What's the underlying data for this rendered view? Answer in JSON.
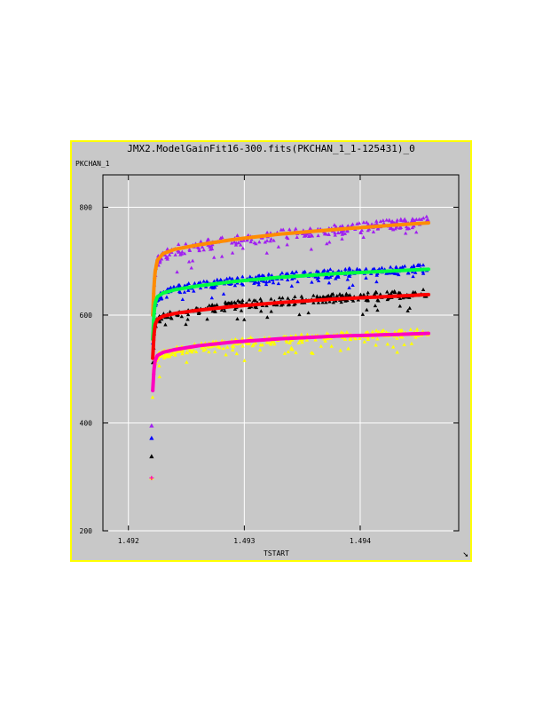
{
  "window": {
    "title": "JMX2.ModelGainFit16-300.fits(PKCHAN_1_1-125431)_0"
  },
  "icons": {
    "resize": "resize-corner-icon"
  },
  "colors": {
    "frame": "#ffff00",
    "panel": "#c8c8c8",
    "grid": "#ffffff"
  },
  "chart_data": {
    "type": "scatter",
    "title": "JMX2.ModelGainFit16-300.fits(PKCHAN_1_1-125431)_0",
    "xlabel": "TSTART",
    "ylabel": "PKCHAN_1",
    "xlim": [
      1.49178,
      1.49485
    ],
    "ylim": [
      200,
      860
    ],
    "x_ticks": [
      {
        "value": 1.492,
        "label": "1.492"
      },
      {
        "value": 1.493,
        "label": "1.493"
      },
      {
        "value": 1.494,
        "label": "1.494"
      }
    ],
    "y_ticks": [
      {
        "value": 200,
        "label": "200"
      },
      {
        "value": 400,
        "label": "400"
      },
      {
        "value": 600,
        "label": "600"
      },
      {
        "value": 800,
        "label": "800"
      }
    ],
    "grid": true,
    "series": [
      {
        "kind": "points",
        "marker": "triangle",
        "color": "#a020f0",
        "start": [
          1.4922,
          395
        ],
        "x": [
          1.49221,
          1.49222,
          1.49223,
          1.49225,
          1.4923,
          1.4924,
          1.4926,
          1.4929,
          1.4933,
          1.4938,
          1.4943,
          1.49459
        ],
        "y": [
          585,
          640,
          675,
          700,
          712,
          720,
          728,
          738,
          748,
          758,
          768,
          774
        ],
        "spread": 20,
        "outlier_down": 35
      },
      {
        "kind": "points",
        "marker": "triangle",
        "color": "#0000ff",
        "start": [
          1.4922,
          372
        ],
        "x": [
          1.49221,
          1.49222,
          1.49223,
          1.49225,
          1.4923,
          1.4924,
          1.4926,
          1.4929,
          1.4933,
          1.4938,
          1.4943,
          1.49459
        ],
        "y": [
          545,
          590,
          615,
          632,
          640,
          647,
          654,
          662,
          670,
          678,
          684,
          688
        ],
        "spread": 16,
        "outlier_down": 25
      },
      {
        "kind": "points",
        "marker": "triangle",
        "color": "#000000",
        "start": [
          1.4922,
          338
        ],
        "x": [
          1.49221,
          1.49222,
          1.49223,
          1.49225,
          1.4923,
          1.4924,
          1.4926,
          1.4929,
          1.4933,
          1.4938,
          1.4943,
          1.49459
        ],
        "y": [
          510,
          555,
          578,
          592,
          598,
          603,
          610,
          618,
          625,
          632,
          637,
          640
        ],
        "spread": 16,
        "outlier_down": 30
      },
      {
        "kind": "points",
        "marker": "triangle",
        "color": "#ffff00",
        "start": [
          1.4922,
          298
        ],
        "x": [
          1.49221,
          1.49222,
          1.49223,
          1.49225,
          1.4923,
          1.4924,
          1.4926,
          1.4929,
          1.4933,
          1.4938,
          1.4943,
          1.49459
        ],
        "y": [
          450,
          490,
          510,
          522,
          528,
          533,
          540,
          548,
          555,
          561,
          565,
          567
        ],
        "spread": 16,
        "outlier_down": 35
      },
      {
        "kind": "fit",
        "color": "#ff8c00",
        "x": [
          1.49221,
          1.49222,
          1.49223,
          1.49225,
          1.4923,
          1.4924,
          1.4926,
          1.4929,
          1.4933,
          1.4938,
          1.4943,
          1.49459
        ],
        "y": [
          600,
          650,
          680,
          702,
          714,
          722,
          730,
          740,
          750,
          759,
          767,
          771
        ]
      },
      {
        "kind": "fit",
        "color": "#00ff40",
        "x": [
          1.49221,
          1.49222,
          1.49223,
          1.49225,
          1.4923,
          1.4924,
          1.4926,
          1.4929,
          1.4933,
          1.4938,
          1.4943,
          1.49459
        ],
        "y": [
          555,
          600,
          622,
          634,
          641,
          647,
          654,
          662,
          670,
          677,
          682,
          685
        ]
      },
      {
        "kind": "fit",
        "color": "#ff0000",
        "x": [
          1.49221,
          1.49222,
          1.49223,
          1.49225,
          1.4923,
          1.4924,
          1.4926,
          1.4929,
          1.4933,
          1.4938,
          1.4943,
          1.49459
        ],
        "y": [
          520,
          562,
          582,
          592,
          598,
          603,
          609,
          616,
          623,
          630,
          635,
          638
        ]
      },
      {
        "kind": "fit",
        "color": "#ff00c0",
        "x": [
          1.49221,
          1.49222,
          1.49223,
          1.49225,
          1.4923,
          1.4924,
          1.4926,
          1.4929,
          1.4933,
          1.4938,
          1.4943,
          1.49459
        ],
        "y": [
          460,
          498,
          515,
          525,
          531,
          536,
          543,
          550,
          556,
          561,
          564,
          566
        ]
      }
    ]
  }
}
